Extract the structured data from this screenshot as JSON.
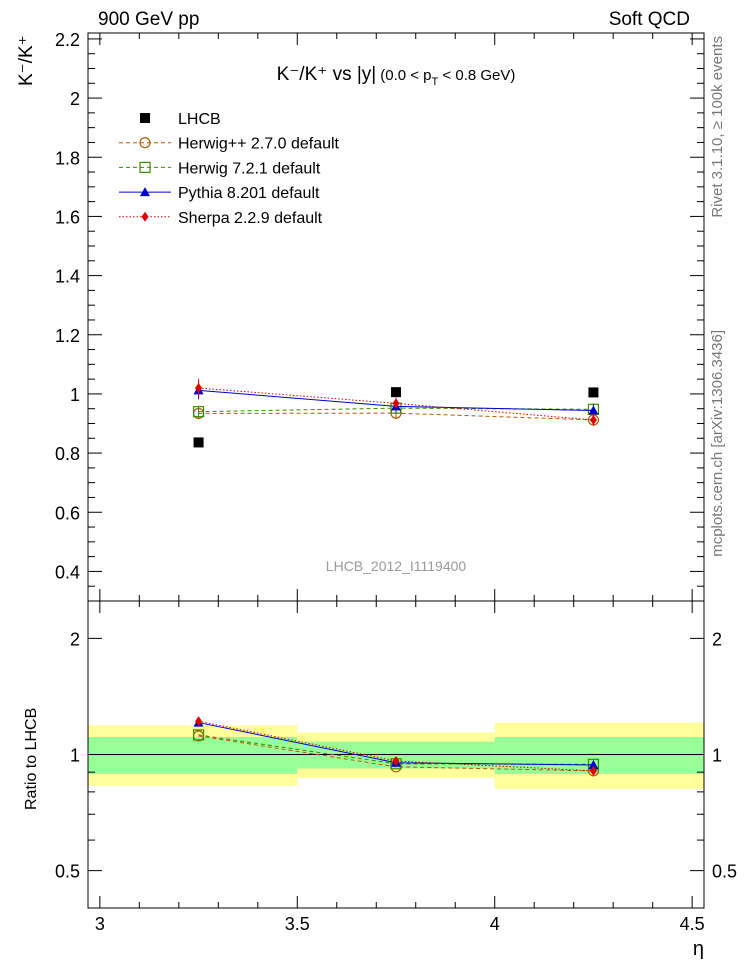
{
  "header": {
    "energy_label": "900 GeV pp",
    "process_label": "Soft QCD"
  },
  "side_labels": {
    "rivet": "Rivet 3.1.10, ≥ 100k events",
    "source": "mcplots.cern.ch [arXiv:1306.3436]"
  },
  "watermark": "LHCB_2012_I1119400",
  "chart_data": [
    {
      "type": "scatter",
      "title": {
        "main": "K⁻/K⁺ vs |y|",
        "cut": "(0.0 < p",
        "cut_sub": "T",
        "cut_end": " < 0.8 GeV)"
      },
      "ylabel": "K⁻/K⁺",
      "xlabel": "η",
      "xlim": [
        2.97,
        4.53
      ],
      "ylim": [
        0.3,
        2.22
      ],
      "yticks": [
        "0.4",
        "0.6",
        "0.8",
        "1",
        "1.2",
        "1.4",
        "1.6",
        "1.8",
        "2",
        "2.2"
      ],
      "xticks": [
        "3",
        "3.5",
        "4",
        "4.5"
      ],
      "x": [
        3.25,
        3.75,
        4.25
      ],
      "series": [
        {
          "name": "LHCB",
          "color": "#000000",
          "marker": "square-filled",
          "line": "none",
          "values": [
            0.836,
            1.006,
            1.005
          ]
        },
        {
          "name": "Herwig++ 2.7.0 default",
          "color": "#b35900",
          "marker": "circle-open",
          "line": "dashed",
          "values": [
            0.934,
            0.935,
            0.912
          ],
          "errors": [
            0.02,
            0.02,
            0.02
          ]
        },
        {
          "name": "Herwig 7.2.1 default",
          "color": "#3a8c00",
          "marker": "square-open",
          "line": "dashed",
          "values": [
            0.94,
            0.952,
            0.948
          ],
          "errors": [
            0.02,
            0.02,
            0.02
          ]
        },
        {
          "name": "Pythia 8.201 default",
          "color": "#0000cc",
          "marker": "triangle-filled",
          "line": "solid",
          "values": [
            1.012,
            0.958,
            0.944
          ],
          "errors": [
            0.03,
            0.02,
            0.02
          ]
        },
        {
          "name": "Sherpa 2.2.9 default",
          "color": "#dd0000",
          "marker": "diamond-filled",
          "line": "dotted",
          "values": [
            1.02,
            0.968,
            0.912
          ],
          "errors": [
            0.03,
            0.02,
            0.02
          ]
        }
      ]
    },
    {
      "type": "scatter",
      "ylabel": "Ratio to LHCB",
      "xlabel": "η",
      "xlim": [
        2.97,
        4.53
      ],
      "ylim": [
        0.4,
        2.5
      ],
      "log_y": true,
      "yticks": [
        "0.5",
        "1",
        "2"
      ],
      "xticks": [
        "3",
        "3.5",
        "4",
        "4.5"
      ],
      "bands": [
        {
          "x": [
            2.97,
            3.5
          ],
          "green": [
            0.89,
            1.11
          ],
          "yellow": [
            0.83,
            1.19
          ]
        },
        {
          "x": [
            3.5,
            4.0
          ],
          "green": [
            0.92,
            1.08
          ],
          "yellow": [
            0.87,
            1.14
          ]
        },
        {
          "x": [
            4.0,
            4.53
          ],
          "green": [
            0.89,
            1.11
          ],
          "yellow": [
            0.815,
            1.21
          ]
        }
      ],
      "x": [
        3.25,
        3.75,
        4.25
      ],
      "series": [
        {
          "name": "Herwig++ 2.7.0 default",
          "values": [
            1.117,
            0.929,
            0.907
          ]
        },
        {
          "name": "Herwig 7.2.1 default",
          "values": [
            1.124,
            0.946,
            0.943
          ]
        },
        {
          "name": "Pythia 8.201 default",
          "values": [
            1.21,
            0.952,
            0.939
          ]
        },
        {
          "name": "Sherpa 2.2.9 default",
          "values": [
            1.22,
            0.962,
            0.907
          ]
        }
      ]
    }
  ]
}
